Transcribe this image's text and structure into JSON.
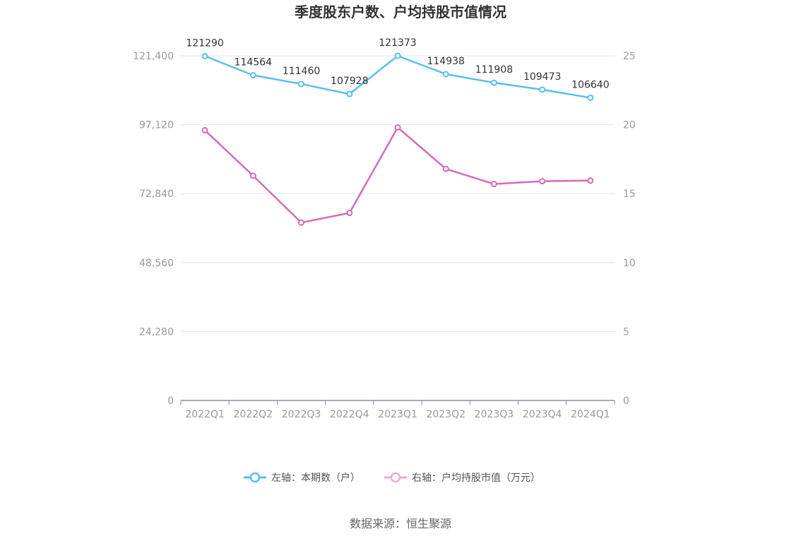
{
  "chart_data": {
    "type": "line",
    "title": "季度股东户数、户均持股市值情况",
    "categories": [
      "2022Q1",
      "2022Q2",
      "2022Q3",
      "2022Q4",
      "2023Q1",
      "2023Q2",
      "2023Q3",
      "2023Q4",
      "2024Q1"
    ],
    "series": [
      {
        "name": "左轴：本期数（户）",
        "axis": "left",
        "color": "#5bbef0",
        "values": [
          121290,
          114564,
          111460,
          107928,
          121373,
          114938,
          111908,
          109473,
          106640
        ],
        "labels": [
          "121290",
          "114564",
          "111460",
          "107928",
          "121373",
          "114938",
          "111908",
          "109473",
          "106640"
        ]
      },
      {
        "name": "右轴：户均持股市值（万元）",
        "axis": "right",
        "color": "#d36db5",
        "legend_color": "#f0a8d6",
        "values": [
          19.6,
          16.3,
          12.9,
          13.6,
          19.8,
          16.8,
          15.7,
          15.9,
          15.95
        ]
      }
    ],
    "y_left": {
      "ylim": [
        0,
        121400
      ],
      "ticks": [
        "0",
        "24,280",
        "48,560",
        "72,840",
        "97,120",
        "121,400"
      ]
    },
    "y_right": {
      "ylim": [
        0,
        25
      ],
      "ticks": [
        "0",
        "5",
        "10",
        "15",
        "20",
        "25"
      ]
    },
    "grid": true,
    "legend_position": "bottom"
  },
  "source": "数据来源：恒生聚源"
}
